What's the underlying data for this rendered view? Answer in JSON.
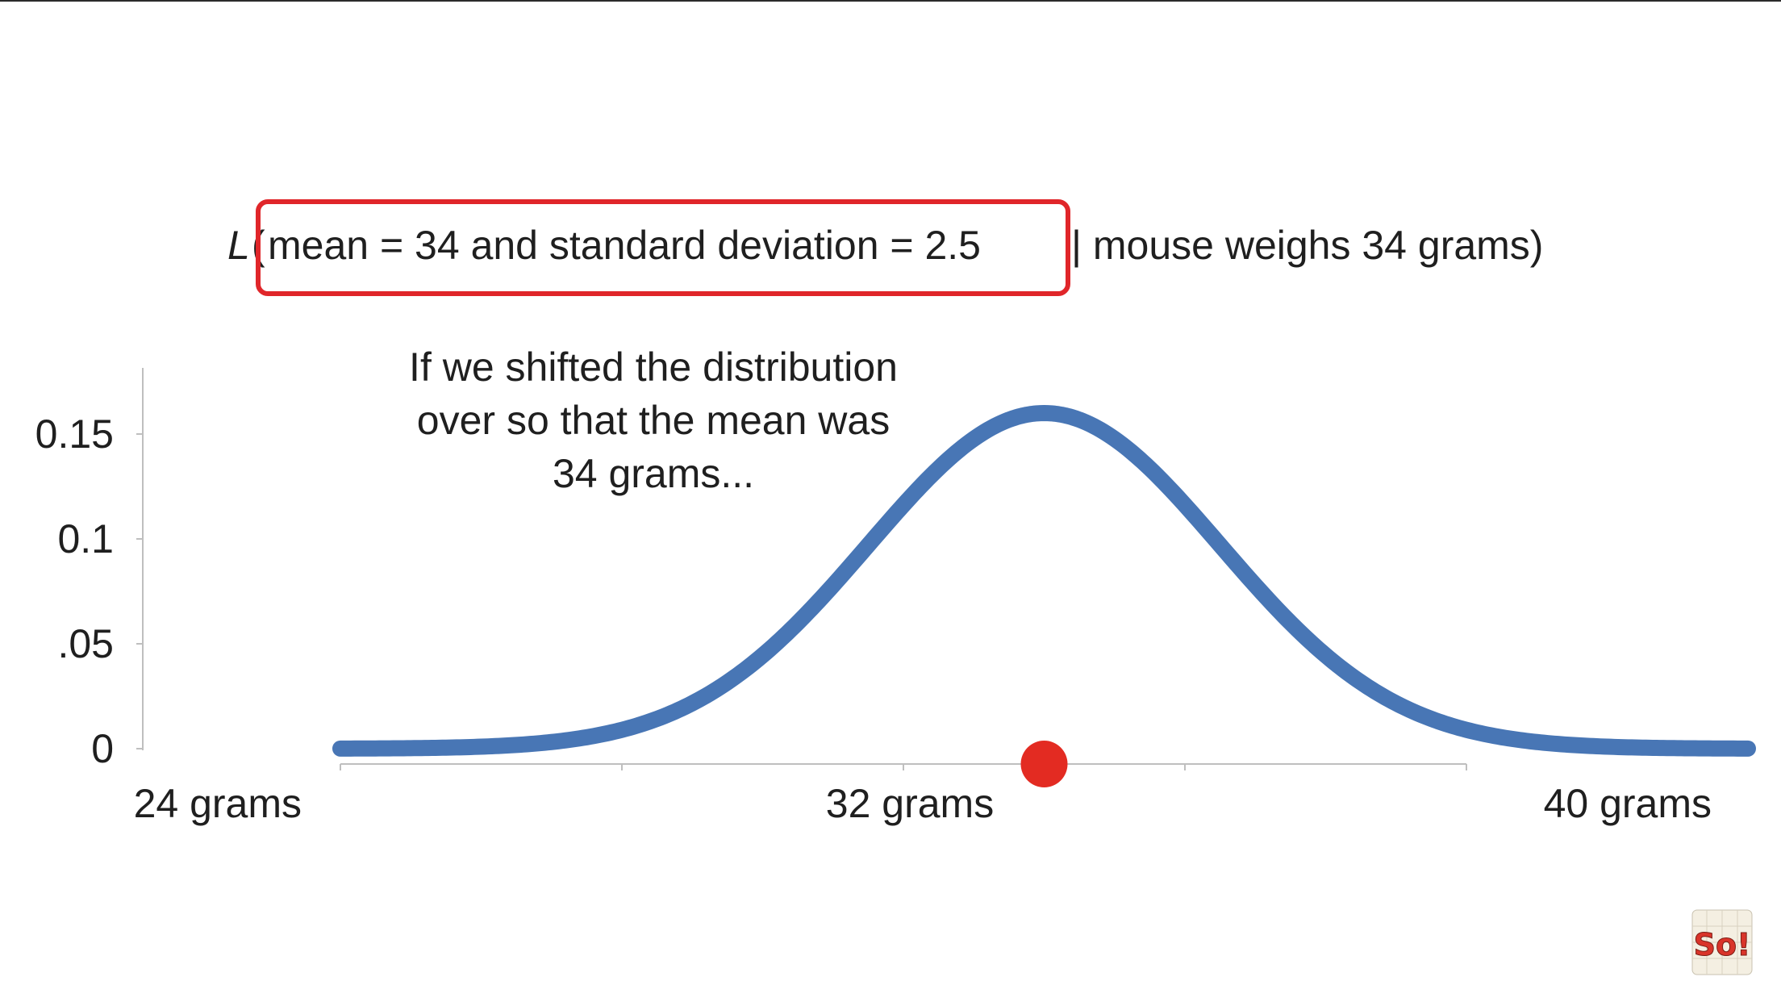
{
  "likelihood": {
    "symbol": "L",
    "open_paren": "(",
    "boxed_text": "mean = 34 and standard deviation = 2.5",
    "given_text": "| mouse weighs 34 grams)"
  },
  "annotation": {
    "lines": [
      "If we shifted the distribution",
      "over so that the mean was",
      "34 grams..."
    ]
  },
  "colors": {
    "curve": "#4876b5",
    "highlight_box": "#e0262a",
    "observation_dot": "#e32b22",
    "axis": "#bfbfbf",
    "text": "#1f1f1f"
  },
  "logo": {
    "text": "So!",
    "icon": "statquest-logo-icon"
  },
  "chart_data": {
    "type": "line",
    "title": "",
    "xlabel": "",
    "ylabel": "",
    "xlim": [
      24,
      40
    ],
    "ylim": [
      0,
      0.18
    ],
    "x_ticks": [
      {
        "value": 24,
        "label": "24 grams"
      },
      {
        "value": 28,
        "label": ""
      },
      {
        "value": 32,
        "label": "32 grams"
      },
      {
        "value": 36,
        "label": ""
      },
      {
        "value": 40,
        "label": "40 grams"
      }
    ],
    "y_ticks": [
      {
        "value": 0,
        "label": "0"
      },
      {
        "value": 0.05,
        "label": ".05"
      },
      {
        "value": 0.1,
        "label": "0.1"
      },
      {
        "value": 0.15,
        "label": "0.15"
      }
    ],
    "grid": false,
    "series": [
      {
        "distribution": "normal",
        "mean": 34,
        "sd": 2.5,
        "peak_density": 0.16,
        "x_range": [
          24,
          44
        ]
      }
    ],
    "observation": {
      "x": 34
    }
  }
}
